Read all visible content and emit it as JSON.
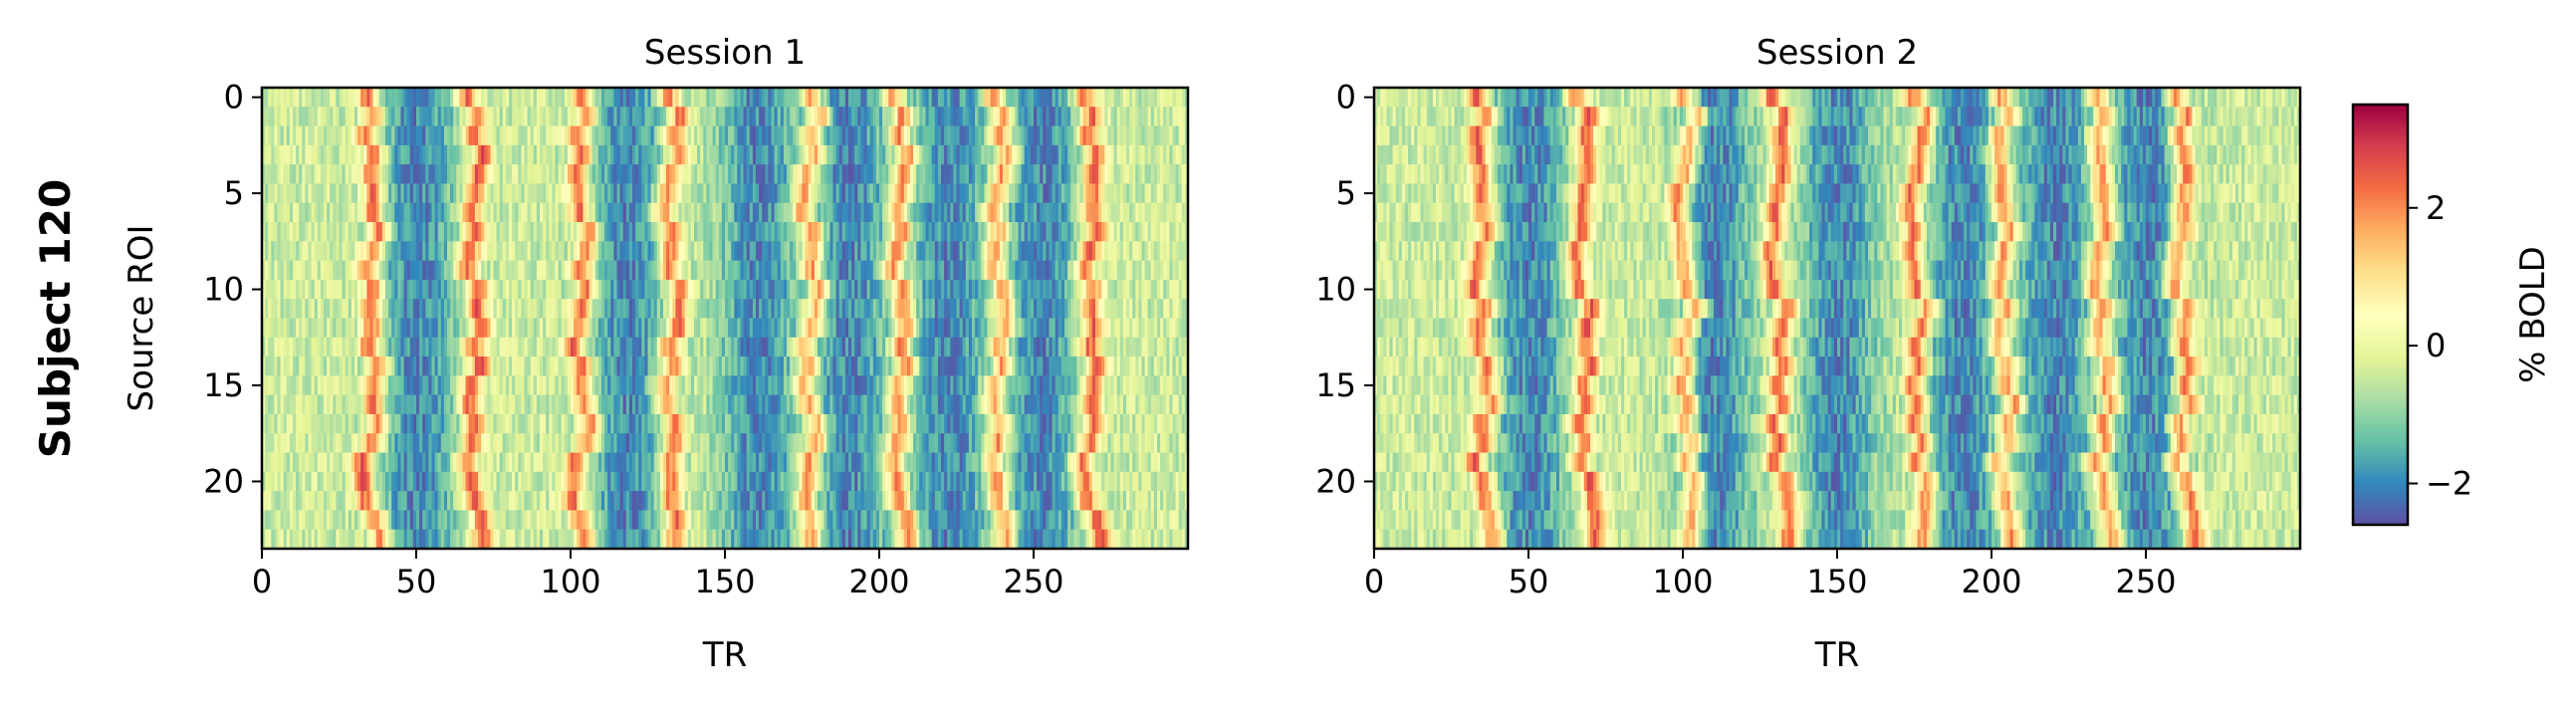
{
  "figure": {
    "row_title": "Subject 120"
  },
  "chart_data": [
    {
      "type": "heatmap",
      "title": "Session 1",
      "xlabel": "TR",
      "ylabel": "Source ROI",
      "x_range": [
        0,
        300
      ],
      "y_range": [
        0,
        23
      ],
      "x_ticks": [
        0,
        50,
        100,
        150,
        200,
        250
      ],
      "y_ticks": [
        0,
        5,
        10,
        15,
        20
      ],
      "y_inverted": true,
      "n_rows": 24,
      "n_cols": 300,
      "colormap": "Spectral_r",
      "peak_TRs": [
        35,
        68,
        103,
        132,
        177,
        206,
        238,
        268
      ],
      "trough_TRs": [
        50,
        118,
        160,
        190,
        222,
        252
      ]
    },
    {
      "type": "heatmap",
      "title": "Session 2",
      "xlabel": "TR",
      "ylabel": "",
      "x_range": [
        0,
        300
      ],
      "y_range": [
        0,
        23
      ],
      "x_ticks": [
        0,
        50,
        100,
        150,
        200,
        250
      ],
      "y_ticks": [
        0,
        5,
        10,
        15,
        20
      ],
      "y_inverted": true,
      "n_rows": 24,
      "n_cols": 300,
      "colormap": "Spectral_r",
      "peak_TRs": [
        35,
        68,
        101,
        131,
        176,
        204,
        236,
        262
      ],
      "trough_TRs": [
        50,
        110,
        150,
        190,
        220,
        250
      ]
    }
  ],
  "colorbar": {
    "label": "% BOLD",
    "range": [
      -2.6,
      3.5
    ],
    "ticks": [
      -2,
      0,
      2
    ],
    "tick_labels": [
      "−2",
      "0",
      "2"
    ],
    "colors": [
      "#5e4fa2",
      "#3288bd",
      "#66c2a5",
      "#abdda4",
      "#e6f598",
      "#ffffbf",
      "#fee08b",
      "#fdae61",
      "#f46d43",
      "#d53e4f",
      "#9e0142"
    ]
  }
}
